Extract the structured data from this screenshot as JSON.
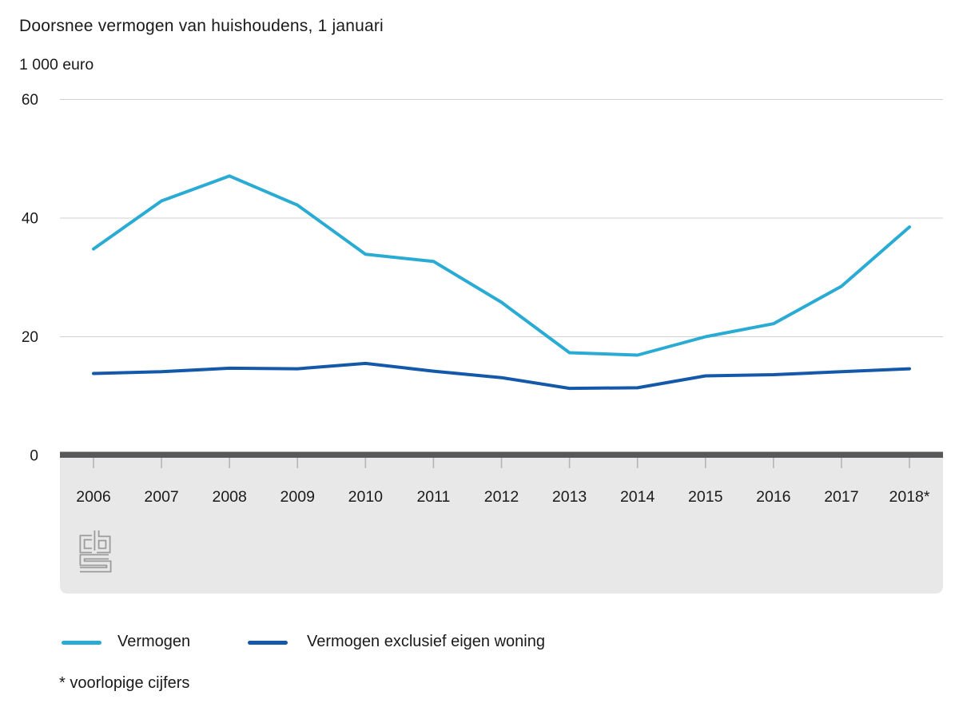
{
  "header": {
    "title": "Doorsnee vermogen van huishoudens, 1 januari",
    "unit": "1 000 euro"
  },
  "footnote": "* voorlopige cijfers",
  "logo_name": "cbs-logo",
  "colors": {
    "series_vermogen": "#2aabd4",
    "series_exclusief": "#1459a9",
    "gridline": "#d0d0d0",
    "zero_axis": "#58585a",
    "plot_band": "#e8e8e8",
    "tick": "#b5b5b5",
    "text": "#1a1a1a",
    "logo": "#9b9b9b"
  },
  "chart_data": {
    "type": "line",
    "title": "Doorsnee vermogen van huishoudens, 1 januari",
    "ylabel": "1 000 euro",
    "xlabel": "",
    "categories": [
      "2006",
      "2007",
      "2008",
      "2009",
      "2010",
      "2011",
      "2012",
      "2013",
      "2014",
      "2015",
      "2016",
      "2017",
      "2018*"
    ],
    "series": [
      {
        "name": "Vermogen",
        "color": "#2aabd4",
        "values": [
          34.8,
          42.9,
          47.1,
          42.2,
          33.9,
          32.7,
          25.8,
          17.3,
          16.9,
          20.0,
          22.2,
          28.5,
          38.5
        ]
      },
      {
        "name": "Vermogen exclusief eigen woning",
        "color": "#1459a9",
        "values": [
          13.8,
          14.1,
          14.7,
          14.6,
          15.5,
          14.2,
          13.1,
          11.3,
          11.4,
          13.4,
          13.6,
          14.1,
          14.6
        ]
      }
    ],
    "ylim": [
      0,
      60
    ],
    "y_ticks": [
      60,
      40,
      20,
      0
    ],
    "grid": true,
    "legend_position": "bottom",
    "footnote": "* voorlopige cijfers"
  }
}
